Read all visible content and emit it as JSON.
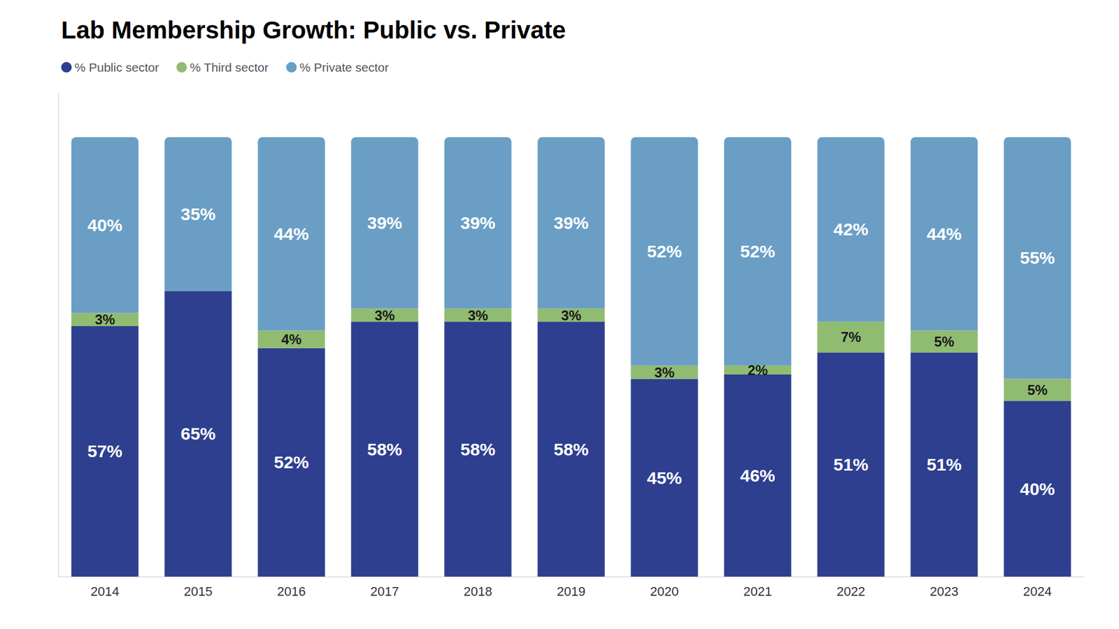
{
  "chart_data": {
    "type": "bar",
    "title": "Lab Membership Growth: Public vs. Private",
    "categories": [
      "2014",
      "2015",
      "2016",
      "2017",
      "2018",
      "2019",
      "2020",
      "2021",
      "2022",
      "2023",
      "2024"
    ],
    "series": [
      {
        "name": "% Public sector",
        "color": "#2e3f8f",
        "values": [
          57,
          65,
          52,
          58,
          58,
          58,
          45,
          46,
          51,
          51,
          40
        ],
        "value_labels": [
          "57%",
          "65%",
          "52%",
          "58%",
          "58%",
          "58%",
          "45%",
          "46%",
          "51%",
          "51%",
          "40%"
        ]
      },
      {
        "name": "% Third sector",
        "color": "#90bc72",
        "values": [
          3,
          0,
          4,
          3,
          3,
          3,
          3,
          2,
          7,
          5,
          5
        ],
        "value_labels": [
          "3%",
          null,
          "4%",
          "3%",
          "3%",
          "3%",
          "3%",
          "2%",
          "7%",
          "5%",
          "5%"
        ]
      },
      {
        "name": "% Private sector",
        "color": "#6a9ec5",
        "values": [
          40,
          35,
          44,
          39,
          39,
          39,
          52,
          52,
          42,
          44,
          55
        ],
        "value_labels": [
          "40%",
          "35%",
          "44%",
          "39%",
          "39%",
          "39%",
          "52%",
          "52%",
          "42%",
          "44%",
          "55%"
        ]
      }
    ],
    "ylim": [
      0,
      110
    ],
    "stacked": true,
    "data_labels": true,
    "tick_labels": "x",
    "grid": false,
    "legend": "upper left"
  }
}
